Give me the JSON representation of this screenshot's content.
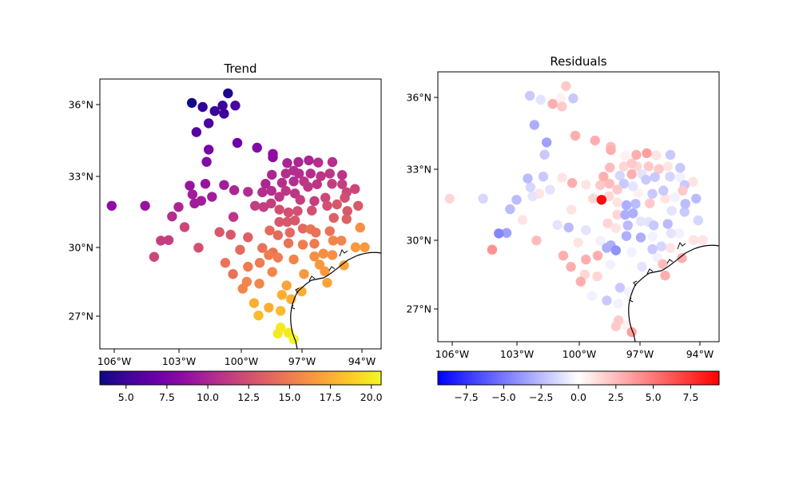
{
  "chart_data": [
    {
      "type": "scatter",
      "title": "Trend",
      "x_ticks": [
        {
          "v": -106,
          "label": "106°W"
        },
        {
          "v": -103,
          "label": "103°W"
        },
        {
          "v": -100,
          "label": "100°W"
        },
        {
          "v": -97,
          "label": "97°W"
        },
        {
          "v": -94,
          "label": "94°W"
        }
      ],
      "y_ticks": [
        {
          "v": 36,
          "label": "36°N"
        },
        {
          "v": 33,
          "label": "33°N"
        },
        {
          "v": 30,
          "label": "30°N"
        },
        {
          "v": 27,
          "label": "27°N"
        }
      ],
      "value_field": "trend",
      "colormap": "plasma",
      "colorbar": {
        "range": [
          3.4,
          20.6
        ],
        "orientation": "horizontal",
        "location": "bottom",
        "ticks": [
          {
            "v": 5.0,
            "label": "5.0"
          },
          {
            "v": 7.5,
            "label": "7.5"
          },
          {
            "v": 10.0,
            "label": "10.0"
          },
          {
            "v": 12.5,
            "label": "12.5"
          },
          {
            "v": 15.0,
            "label": "15.0"
          },
          {
            "v": 17.5,
            "label": "17.5"
          },
          {
            "v": 20.0,
            "label": "20.0"
          }
        ]
      },
      "coastline": true
    },
    {
      "type": "scatter",
      "title": "Residuals",
      "x_ticks": [
        {
          "v": -106,
          "label": "106°W"
        },
        {
          "v": -103,
          "label": "103°W"
        },
        {
          "v": -100,
          "label": "100°W"
        },
        {
          "v": -97,
          "label": "97°W"
        },
        {
          "v": -94,
          "label": "94°W"
        }
      ],
      "y_ticks": [
        {
          "v": 36,
          "label": "36°N"
        },
        {
          "v": 33,
          "label": "33°N"
        },
        {
          "v": 30,
          "label": "30°N"
        },
        {
          "v": 27,
          "label": "27°N"
        }
      ],
      "value_field": "residual",
      "colormap": "bwr",
      "colorbar": {
        "range": [
          -9.4,
          9.4
        ],
        "orientation": "horizontal",
        "location": "bottom",
        "ticks": [
          {
            "v": -7.5,
            "label": "−7.5"
          },
          {
            "v": -5.0,
            "label": "−5.0"
          },
          {
            "v": -2.5,
            "label": "−2.5"
          },
          {
            "v": 0.0,
            "label": "0.0"
          },
          {
            "v": 2.5,
            "label": "2.5"
          },
          {
            "v": 5.0,
            "label": "5.0"
          },
          {
            "v": 7.5,
            "label": "7.5"
          }
        ]
      },
      "coastline": true
    }
  ],
  "stations_columns": [
    "lon",
    "lat",
    "trend",
    "residual"
  ],
  "stations": [
    [
      -100.64,
      36.47,
      4,
      2
    ],
    [
      -102.38,
      36.07,
      3.5,
      -2
    ],
    [
      -101.86,
      35.9,
      4.5,
      -1
    ],
    [
      -101.28,
      35.73,
      5,
      3
    ],
    [
      -100.9,
      35.96,
      5,
      0.5
    ],
    [
      -100.83,
      35.62,
      5,
      2
    ],
    [
      -100.29,
      35.96,
      5.5,
      -2
    ],
    [
      -101.57,
      35.22,
      5.5,
      0
    ],
    [
      -102.16,
      34.85,
      6,
      -3
    ],
    [
      -100.19,
      34.4,
      7,
      3
    ],
    [
      -99.22,
      34.2,
      8,
      3
    ],
    [
      -98.44,
      33.94,
      8.5,
      2.5
    ],
    [
      -98.44,
      33.8,
      8.5,
      3
    ],
    [
      -101.57,
      34.12,
      7.5,
      -3.5
    ],
    [
      -101.67,
      33.61,
      8,
      -2
    ],
    [
      -97.73,
      33.56,
      10,
      0.5
    ],
    [
      -97.18,
      33.6,
      10,
      3
    ],
    [
      -96.66,
      33.67,
      10,
      3.5
    ],
    [
      -96.19,
      33.58,
      10.5,
      1
    ],
    [
      -95.48,
      33.6,
      10.5,
      -2
    ],
    [
      -97.8,
      33.12,
      10.5,
      1.5
    ],
    [
      -97.41,
      33.24,
      10.5,
      2
    ],
    [
      -97.15,
      33.12,
      10.5,
      1.5
    ],
    [
      -96.57,
      33.12,
      10.5,
      2
    ],
    [
      -96.06,
      33.01,
      11,
      2
    ],
    [
      -95.61,
      33.12,
      11,
      1
    ],
    [
      -94.99,
      33.06,
      11,
      -2
    ],
    [
      -98.49,
      33.07,
      10,
      2.5
    ],
    [
      -97.99,
      32.73,
      10.5,
      -1.5
    ],
    [
      -97.41,
      32.79,
      10.5,
      3
    ],
    [
      -96.9,
      32.79,
      11,
      -1
    ],
    [
      -96.25,
      32.67,
      11,
      -2
    ],
    [
      -95.5,
      32.69,
      11.5,
      -1.5
    ],
    [
      -94.99,
      32.67,
      11.5,
      -0.5
    ],
    [
      -98.8,
      32.69,
      10,
      3
    ],
    [
      -102.48,
      32.61,
      9,
      -2.5
    ],
    [
      -101.73,
      32.69,
      9,
      -2
    ],
    [
      -100.83,
      32.64,
      9.5,
      1
    ],
    [
      -100.34,
      32.42,
      10,
      3
    ],
    [
      -99.67,
      32.35,
      10.5,
      1
    ],
    [
      -98.96,
      32.33,
      10.5,
      2
    ],
    [
      -98.51,
      32.39,
      10.5,
      2.5
    ],
    [
      -97.8,
      32.39,
      11,
      -2
    ],
    [
      -97.35,
      32.28,
      11,
      -1
    ],
    [
      -96.7,
      32.56,
      11,
      -2
    ],
    [
      -94.77,
      32.33,
      12,
      -2
    ],
    [
      -94.35,
      32.47,
      12,
      1
    ],
    [
      -102.35,
      32.24,
      9.5,
      -1.5
    ],
    [
      -101.41,
      32.14,
      9.5,
      -1
    ],
    [
      -98.12,
      32.14,
      11,
      2
    ],
    [
      -97.09,
      32.01,
      11.5,
      0.5
    ],
    [
      -96.38,
      31.96,
      11.5,
      -2
    ],
    [
      -95.83,
      32.1,
      12,
      -2
    ],
    [
      -94.86,
      32.1,
      12.5,
      2
    ],
    [
      -101.93,
      31.97,
      9.5,
      1
    ],
    [
      -102.25,
      31.86,
      9.5,
      -1
    ],
    [
      -106.12,
      31.76,
      8.5,
      1.5
    ],
    [
      -104.57,
      31.76,
      9,
      -1.5
    ],
    [
      -103.02,
      31.71,
      10,
      -2.5
    ],
    [
      -99.32,
      31.76,
      11.5,
      1.5
    ],
    [
      -98.9,
      31.71,
      11.5,
      9
    ],
    [
      -98.53,
      31.86,
      11.5,
      1.5
    ],
    [
      -98.12,
      31.6,
      12.5,
      1
    ],
    [
      -97.67,
      31.48,
      12.5,
      -3
    ],
    [
      -97.22,
      31.54,
      12.5,
      -2.5
    ],
    [
      -96.51,
      31.56,
      12.5,
      2
    ],
    [
      -95.74,
      31.76,
      12.5,
      1
    ],
    [
      -95.25,
      31.82,
      13,
      -0.5
    ],
    [
      -94.19,
      31.76,
      13,
      -2.5
    ],
    [
      -94.73,
      31.54,
      13,
      -2.5
    ],
    [
      -100.38,
      31.29,
      11,
      1
    ],
    [
      -103.32,
      31.31,
      10.5,
      -2.5
    ],
    [
      -98.12,
      31.08,
      13,
      1.5
    ],
    [
      -97.73,
      31.08,
      13,
      -3
    ],
    [
      -97.35,
      31.14,
      13,
      -3
    ],
    [
      -95.41,
      31.25,
      13.5,
      -1
    ],
    [
      -94.77,
      31.2,
      13.5,
      -2
    ],
    [
      -102.73,
      30.86,
      12,
      1
    ],
    [
      -101.05,
      30.65,
      13,
      -1
    ],
    [
      -100.51,
      30.54,
      13,
      -2.5
    ],
    [
      -99.67,
      30.43,
      13.5,
      -1
    ],
    [
      -98.6,
      30.72,
      14,
      1.5
    ],
    [
      -98.19,
      30.52,
      14,
      1
    ],
    [
      -97.6,
      30.63,
      14,
      -2.5
    ],
    [
      -96.96,
      30.8,
      14,
      -1
    ],
    [
      -96.57,
      30.77,
      14.5,
      -1
    ],
    [
      -96.31,
      30.63,
      14.5,
      -2
    ],
    [
      -95.61,
      30.69,
      14.5,
      -2.5
    ],
    [
      -94.09,
      30.84,
      16,
      -1.5
    ],
    [
      -103.84,
      30.29,
      11.5,
      -4.5
    ],
    [
      -103.48,
      30.31,
      11.5,
      -3.5
    ],
    [
      -102.06,
      29.99,
      12.5,
      2.5
    ],
    [
      -100.06,
      29.9,
      14,
      1
    ],
    [
      -98.96,
      29.98,
      14.5,
      -0.5
    ],
    [
      -98.44,
      29.78,
      14.5,
      -3
    ],
    [
      -97.67,
      30.18,
      14.5,
      -3
    ],
    [
      -96.96,
      30.12,
      15,
      -3
    ],
    [
      -96.38,
      30.16,
      15,
      -0.5
    ],
    [
      -95.44,
      30.29,
      15.5,
      -1
    ],
    [
      -95.03,
      30.29,
      15.5,
      -0.5
    ],
    [
      -94.32,
      30.01,
      16.5,
      1
    ],
    [
      -93.86,
      30.01,
      16.5,
      1
    ],
    [
      -104.15,
      29.59,
      12,
      4
    ],
    [
      -100.77,
      29.33,
      14.5,
      3
    ],
    [
      -99.67,
      29.16,
      15,
      3
    ],
    [
      -99.09,
      29.33,
      15,
      3
    ],
    [
      -98.64,
      29.67,
      15,
      -3
    ],
    [
      -98.19,
      29.56,
      15,
      -4
    ],
    [
      -97.41,
      29.48,
      15.5,
      -0.5
    ],
    [
      -96.38,
      29.61,
      16,
      -2
    ],
    [
      -95.93,
      29.73,
      16,
      -1.5
    ],
    [
      -95.48,
      29.67,
      16,
      1
    ],
    [
      -96.12,
      29.25,
      16.5,
      -0.5
    ],
    [
      -95.86,
      28.96,
      16.5,
      2.5
    ],
    [
      -94.9,
      29.22,
      17,
      3
    ],
    [
      -98.47,
      28.93,
      15.5,
      -0.5
    ],
    [
      -100.4,
      28.84,
      14.5,
      3
    ],
    [
      -96.9,
      28.84,
      16.5,
      -1
    ],
    [
      -99.73,
      28.5,
      15.5,
      1.5
    ],
    [
      -99.11,
      28.42,
      15.5,
      1.5
    ],
    [
      -99.93,
      28.2,
      15.5,
      3
    ],
    [
      -97.76,
      28.34,
      17,
      0
    ],
    [
      -95.74,
      28.46,
      17,
      3
    ],
    [
      -97.99,
      27.93,
      17.5,
      -2
    ],
    [
      -97.54,
      27.74,
      17.5,
      -0.5
    ],
    [
      -97.02,
      28.08,
      17.5,
      0
    ],
    [
      -99.37,
      27.57,
      17.5,
      -0.5
    ],
    [
      -98.64,
      27.37,
      17.5,
      -2
    ],
    [
      -98.06,
      27.23,
      18,
      -0.5
    ],
    [
      -99.15,
      27.03,
      18,
      0
    ],
    [
      -98.06,
      26.5,
      20,
      2
    ],
    [
      -98.19,
      26.24,
      20,
      2
    ],
    [
      -97.67,
      26.27,
      20,
      0.5
    ],
    [
      -97.41,
      25.99,
      20.5,
      3.5
    ]
  ],
  "colors": {
    "plasma": [
      "#0d0887",
      "#41049d",
      "#6a00a8",
      "#8f0da4",
      "#b12a90",
      "#cc4778",
      "#e16462",
      "#f2844b",
      "#fca636",
      "#fcce25",
      "#f0f921"
    ],
    "bwr": [
      "#0000ff",
      "#ffffff",
      "#ff0000"
    ],
    "coastline": "#000000"
  }
}
